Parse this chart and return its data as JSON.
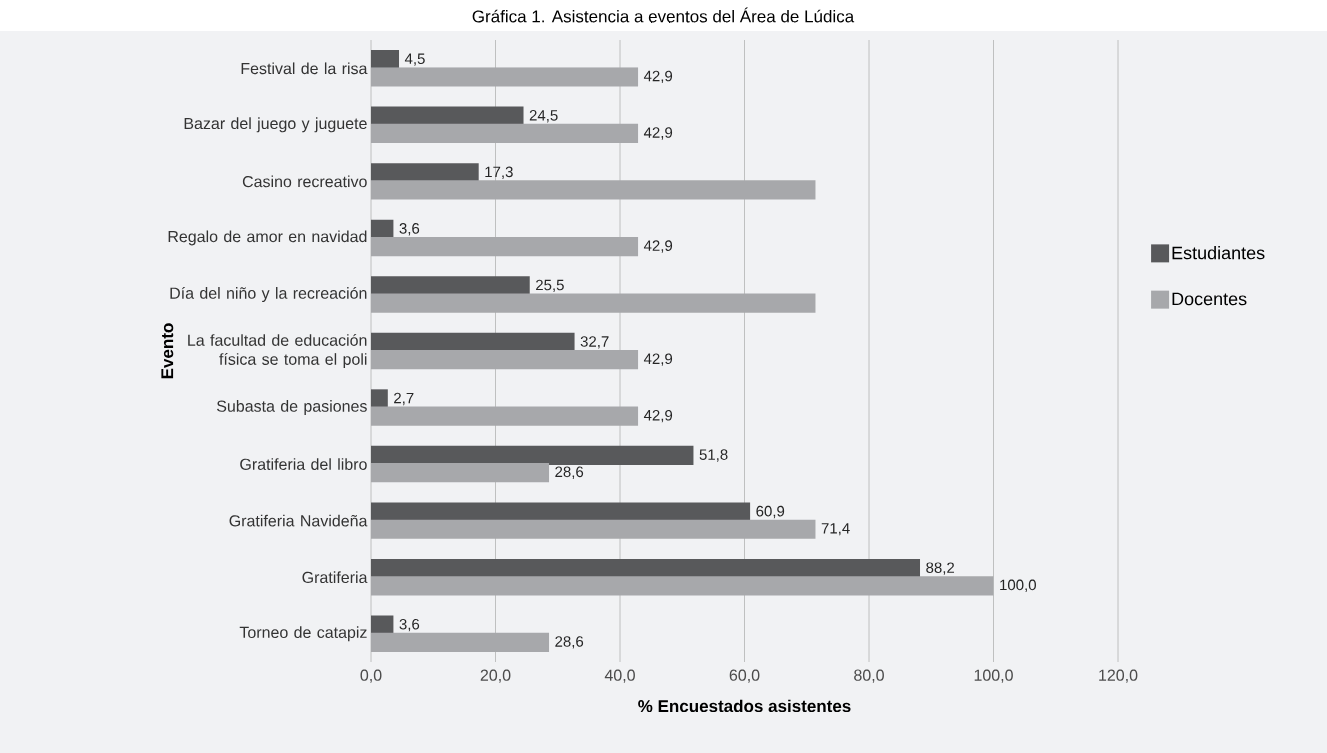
{
  "chart_data": {
    "type": "bar",
    "orientation": "horizontal",
    "title": "Gráfica 1. Asistencia a eventos del Área de Lúdica",
    "xlabel": "% Encuestados asistentes",
    "ylabel": "Evento",
    "categories": [
      "Festival de la risa",
      "Bazar del juego y juguete",
      "Casino recreativo",
      "Regalo de amor en navidad",
      "Día del niño y la recreación",
      "La facultad de educación física se toma el poli",
      "Subasta de pasiones",
      "Gratiferia del libro",
      "Gratiferia Navideña",
      "Gratiferia",
      "Torneo de catapiz"
    ],
    "series": [
      {
        "name": "Estudiantes",
        "color": "#58595b",
        "values": [
          4.5,
          24.5,
          17.3,
          3.6,
          25.5,
          32.7,
          2.7,
          51.8,
          60.9,
          88.2,
          3.6
        ],
        "value_labels": [
          "4,5",
          "24,5",
          "17,3",
          "3,6",
          "25,5",
          "32,7",
          "2,7",
          "51,8",
          "60,9",
          "88,2",
          "3,6"
        ]
      },
      {
        "name": "Docentes",
        "color": "#a7a8ab",
        "values": [
          42.9,
          42.9,
          71.4,
          42.9,
          71.4,
          42.9,
          42.9,
          28.6,
          71.4,
          100.0,
          28.6
        ],
        "value_labels": [
          "42,9",
          "42,9",
          null,
          "42,9",
          null,
          "42,9",
          "42,9",
          "28,6",
          "71,4",
          "100,0",
          "28,6"
        ]
      }
    ],
    "xlim": [
      0,
      120
    ],
    "xticks": [
      {
        "value": 0,
        "label": "0,0"
      },
      {
        "value": 20,
        "label": "20,0"
      },
      {
        "value": 40,
        "label": "40,0"
      },
      {
        "value": 60,
        "label": "60,0"
      },
      {
        "value": 80,
        "label": "80,0"
      },
      {
        "value": 100,
        "label": "100,0"
      },
      {
        "value": 120,
        "label": "120,0"
      }
    ],
    "grid": "x",
    "legend": "right"
  }
}
